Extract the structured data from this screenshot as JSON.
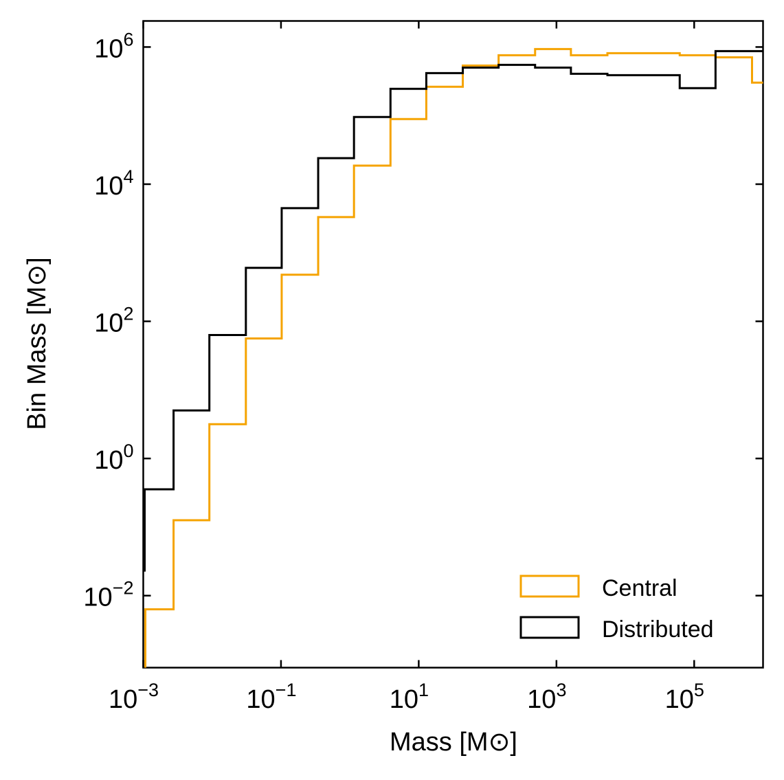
{
  "chart_data": {
    "type": "step",
    "title": "",
    "xlabel": "Mass [M⊙]",
    "ylabel": "Bin Mass [M⊙]",
    "xscale": "log",
    "yscale": "log",
    "xlim_log10": [
      -3,
      6
    ],
    "ylim_log10": [
      -3.05,
      6.38
    ],
    "x_ticks": [
      {
        "base": "10",
        "exp": "−3",
        "log": -3
      },
      {
        "base": "10",
        "exp": "−1",
        "log": -1
      },
      {
        "base": "10",
        "exp": "1",
        "log": 1
      },
      {
        "base": "10",
        "exp": "3",
        "log": 3
      },
      {
        "base": "10",
        "exp": "5",
        "log": 5
      }
    ],
    "y_ticks": [
      {
        "base": "10",
        "exp": "−2",
        "log": -2
      },
      {
        "base": "10",
        "exp": "0",
        "log": 0
      },
      {
        "base": "10",
        "exp": "2",
        "log": 2
      },
      {
        "base": "10",
        "exp": "4",
        "log": 4
      },
      {
        "base": "10",
        "exp": "6",
        "log": 6
      }
    ],
    "legend_position": "lower-right",
    "bin_edges_log10": [
      -3.0,
      -2.56,
      -2.04,
      -1.51,
      -0.99,
      -0.46,
      0.06,
      0.59,
      1.11,
      1.64,
      2.16,
      2.69,
      3.21,
      3.74,
      4.26,
      4.79,
      5.31,
      5.84,
      6.0
    ],
    "series": [
      {
        "name": "Central",
        "color": "#f5a300",
        "first_bin_start_log10": -2.97,
        "values_log10": [
          -2.2,
          -0.9,
          0.5,
          1.75,
          2.68,
          3.52,
          4.27,
          4.95,
          5.42,
          5.73,
          5.88,
          5.97,
          5.88,
          5.91,
          5.91,
          5.88,
          5.85,
          5.48
        ],
        "start_drop_log10": -3.05
      },
      {
        "name": "Distributed",
        "color": "#000000",
        "first_bin_start_log10": -2.98,
        "values_log10": [
          -0.45,
          0.7,
          1.8,
          2.78,
          3.65,
          4.38,
          4.98,
          5.39,
          5.62,
          5.7,
          5.74,
          5.7,
          5.61,
          5.59,
          5.59,
          5.4,
          5.94,
          5.94
        ],
        "start_drop_log10": -1.65
      }
    ]
  }
}
